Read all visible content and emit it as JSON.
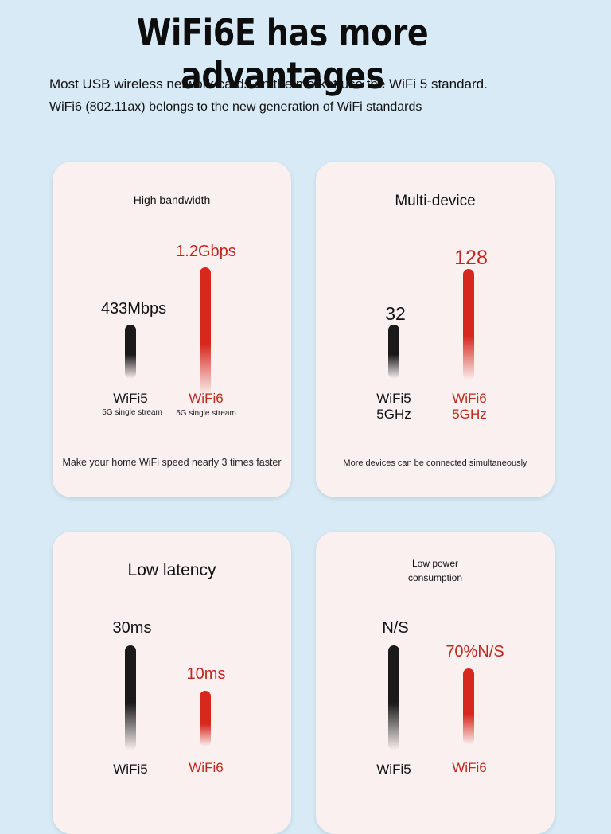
{
  "header": {
    "title": "WiFi6E has more advantages",
    "line1": "Most USB wireless network cards on the market use the WiFi 5 standard.",
    "line2": "WiFi6 (802.11ax) belongs to the new generation of WiFi standards"
  },
  "cards": {
    "bandwidth": {
      "title": "High bandwidth",
      "wifi5_value": "433Mbps",
      "wifi6_value": "1.2Gbps",
      "wifi5_label": "WiFi5",
      "wifi6_label": "WiFi6",
      "wifi5_note": "5G single stream",
      "wifi6_note": "5G single stream",
      "footer": "Make your home WiFi speed nearly 3 times faster"
    },
    "multidevice": {
      "title": "Multi-device",
      "wifi5_value": "32",
      "wifi6_value": "128",
      "wifi5_label": "WiFi5",
      "wifi5_band": "5GHz",
      "wifi6_label": "WiFi6",
      "wifi6_band": "5GHz",
      "footer": "More devices can be connected simultaneously"
    },
    "latency": {
      "title": "Low latency",
      "wifi5_value": "30ms",
      "wifi6_value": "10ms",
      "wifi5_label": "WiFi5",
      "wifi6_label": "WiFi6"
    },
    "power": {
      "title_line1": "Low power",
      "title_line2": "consumption",
      "wifi5_value": "N/S",
      "wifi6_value": "70%N/S",
      "wifi5_label": "WiFi5",
      "wifi6_label": "WiFi6"
    }
  },
  "colors": {
    "background": "#d7eaf5",
    "card": "#faf0ef",
    "wifi5_bar": "#1a1a1a",
    "wifi6_bar": "#d7281e",
    "wifi6_text": "#c0271e"
  }
}
